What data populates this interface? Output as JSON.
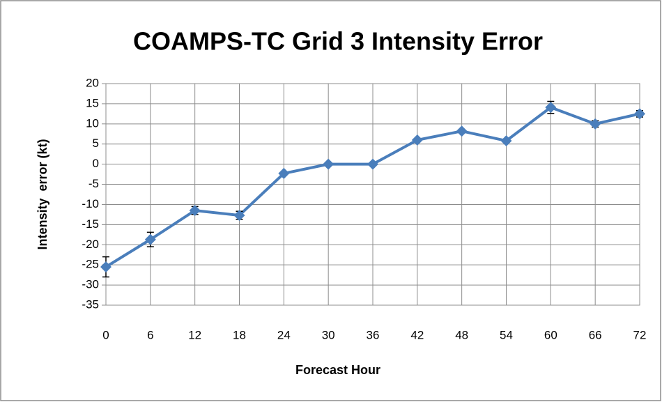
{
  "chart_data": {
    "type": "line",
    "title": "COAMPS-TC Grid 3 Intensity Error",
    "x_label": "Forecast Hour",
    "y_label": "Intensity  error (kt)",
    "x": [
      0,
      6,
      12,
      18,
      24,
      30,
      36,
      42,
      48,
      54,
      60,
      66,
      72
    ],
    "series": [
      {
        "color": "#4a7ebb",
        "values": [
          -25.5,
          -18.7,
          -11.5,
          -12.7,
          -2.3,
          0,
          0,
          6,
          8.2,
          5.8,
          14.1,
          10,
          12.5
        ],
        "errors": [
          2.5,
          1.8,
          1,
          1,
          0.3,
          0.2,
          0.2,
          0.3,
          0.3,
          0.3,
          1.5,
          0.8,
          0.8
        ]
      }
    ],
    "xlim": [
      0,
      72
    ],
    "xticks": [
      0,
      6,
      12,
      18,
      24,
      30,
      36,
      42,
      48,
      54,
      60,
      66,
      72
    ],
    "ylim": [
      -35,
      20
    ],
    "yticks": [
      -35,
      -30,
      -25,
      -20,
      -15,
      -10,
      -5,
      0,
      5,
      10,
      15,
      20
    ],
    "grid": true
  }
}
